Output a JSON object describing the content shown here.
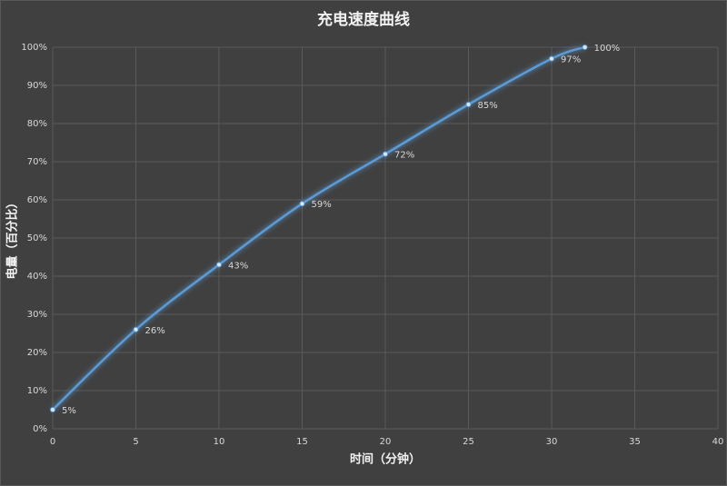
{
  "chart_data": {
    "type": "line",
    "title": "充电速度曲线",
    "x_label": "时间（分钟）",
    "y_label": "电量（百分比）",
    "x": [
      0,
      5,
      10,
      15,
      20,
      25,
      30,
      32
    ],
    "series": [
      {
        "color": "#5b9bd5",
        "values": [
          5,
          26,
          43,
          59,
          72,
          85,
          97,
          100
        ],
        "value_labels": [
          "5%",
          "26%",
          "43%",
          "59%",
          "72%",
          "85%",
          "97%",
          "100%"
        ]
      }
    ],
    "xlim": [
      0,
      40
    ],
    "xticks": [
      0,
      5,
      10,
      15,
      20,
      25,
      30,
      35,
      40
    ],
    "ylim": [
      0,
      100
    ],
    "yticks": [
      {
        "value": 0,
        "label": "0%"
      },
      {
        "value": 10,
        "label": "10%"
      },
      {
        "value": 20,
        "label": "20%"
      },
      {
        "value": 30,
        "label": "30%"
      },
      {
        "value": 40,
        "label": "40%"
      },
      {
        "value": 50,
        "label": "50%"
      },
      {
        "value": 60,
        "label": "60%"
      },
      {
        "value": 70,
        "label": "70%"
      },
      {
        "value": 80,
        "label": "80%"
      },
      {
        "value": 90,
        "label": "90%"
      },
      {
        "value": 100,
        "label": "100%"
      }
    ],
    "grid": true
  }
}
